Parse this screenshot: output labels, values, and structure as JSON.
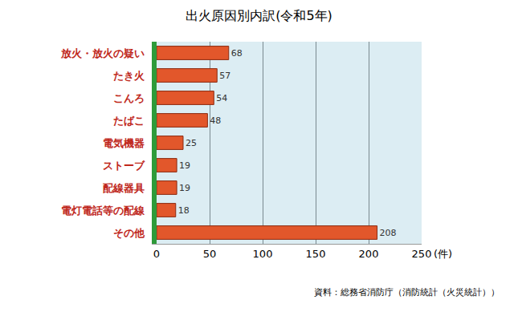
{
  "chart_data": {
    "type": "bar",
    "orientation": "horizontal",
    "title": "出火原因別内訳(令和5年)",
    "categories": [
      "放火・放火の疑い",
      "たき火",
      "こんろ",
      "たばこ",
      "電気機器",
      "ストーブ",
      "配線器具",
      "電灯電話等の配線",
      "その他"
    ],
    "values": [
      68,
      57,
      54,
      48,
      25,
      19,
      19,
      18,
      208
    ],
    "color": "#e2572b",
    "xlim": [
      0,
      250
    ],
    "xticks": [
      0,
      50,
      100,
      150,
      200,
      250
    ],
    "x_label": "(件)",
    "source": "資料：総務省消防庁（消防統計（火災統計））",
    "grid": true,
    "data_labels": true
  }
}
